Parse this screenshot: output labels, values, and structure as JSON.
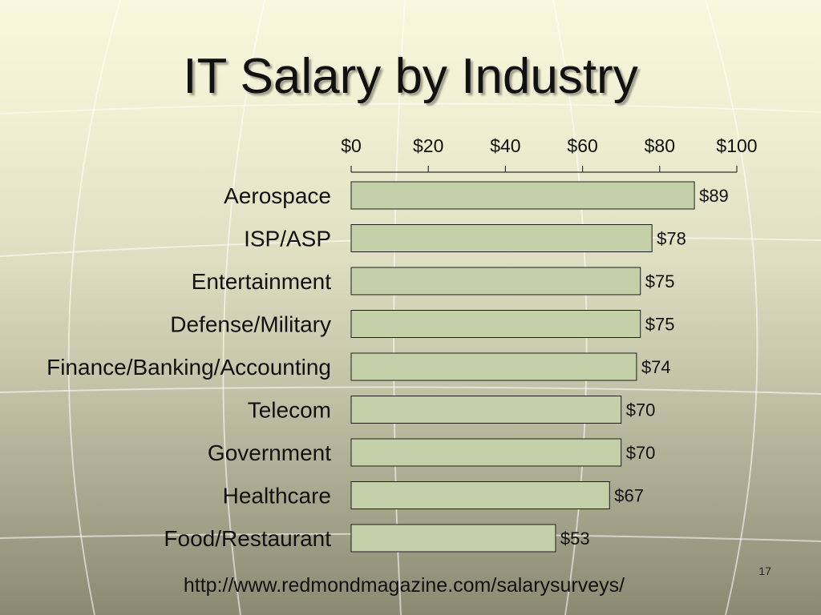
{
  "chart_data": {
    "type": "bar",
    "orientation": "horizontal",
    "title": "IT Salary by Industry",
    "categories": [
      "Aerospace",
      "ISP/ASP",
      "Entertainment",
      "Defense/Military",
      "Finance/Banking/Accounting",
      "Telecom",
      "Government",
      "Healthcare",
      "Food/Restaurant"
    ],
    "values": [
      89,
      78,
      75,
      75,
      74,
      70,
      70,
      67,
      53
    ],
    "data_labels": [
      "$89",
      "$78",
      "$75",
      "$75",
      "$74",
      "$70",
      "$70",
      "$67",
      "$53"
    ],
    "x_ticks": [
      0,
      20,
      40,
      60,
      80,
      100
    ],
    "x_tick_labels": [
      "$0",
      "$20",
      "$40",
      "$60",
      "$80",
      "$100"
    ],
    "xlim": [
      0,
      100
    ],
    "xlabel": "",
    "ylabel": "",
    "x_axis_position": "top",
    "grid": false,
    "bar_color": "#c4d1a8",
    "bar_edge_color": "#1e1e1e"
  },
  "footer": {
    "source_url": "http://www.redmondmagazine.com/salarysurveys/",
    "page_number": "17"
  }
}
